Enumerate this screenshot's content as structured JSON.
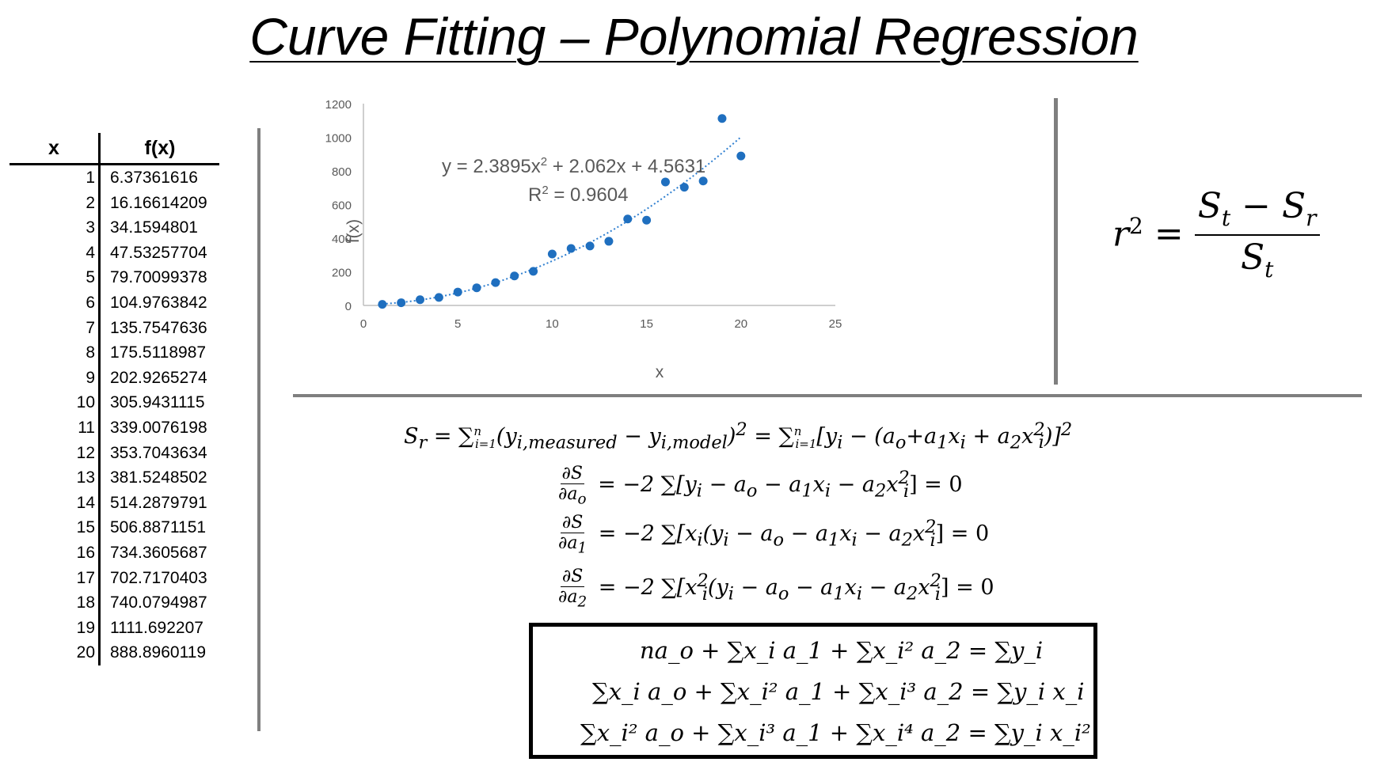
{
  "title": "Curve Fitting – Polynomial  Regression",
  "table": {
    "header_x": "x",
    "header_fx": "f(x)",
    "rows": [
      {
        "x": "1",
        "fx": "6.37361616"
      },
      {
        "x": "2",
        "fx": "16.16614209"
      },
      {
        "x": "3",
        "fx": "34.1594801"
      },
      {
        "x": "4",
        "fx": "47.53257704"
      },
      {
        "x": "5",
        "fx": "79.70099378"
      },
      {
        "x": "6",
        "fx": "104.9763842"
      },
      {
        "x": "7",
        "fx": "135.7547636"
      },
      {
        "x": "8",
        "fx": "175.5118987"
      },
      {
        "x": "9",
        "fx": "202.9265274"
      },
      {
        "x": "10",
        "fx": "305.9431115"
      },
      {
        "x": "11",
        "fx": "339.0076198"
      },
      {
        "x": "12",
        "fx": "353.7043634"
      },
      {
        "x": "13",
        "fx": "381.5248502"
      },
      {
        "x": "14",
        "fx": "514.2879791"
      },
      {
        "x": "15",
        "fx": "506.8871151"
      },
      {
        "x": "16",
        "fx": "734.3605687"
      },
      {
        "x": "17",
        "fx": "702.7170403"
      },
      {
        "x": "18",
        "fx": "740.0794987"
      },
      {
        "x": "19",
        "fx": "1111.692207"
      },
      {
        "x": "20",
        "fx": "888.8960119"
      }
    ]
  },
  "chart_data": {
    "type": "scatter",
    "title": "",
    "xlabel": "x",
    "ylabel": "f(x)",
    "xlim": [
      0,
      25
    ],
    "ylim": [
      0,
      1200
    ],
    "xticks": [
      "0",
      "5",
      "10",
      "15",
      "20",
      "25"
    ],
    "yticks": [
      "0",
      "200",
      "400",
      "600",
      "800",
      "1000",
      "1200"
    ],
    "grid": false,
    "point_color": "#1f6fbf",
    "trendline_color": "#2f7fd0",
    "x": [
      1,
      2,
      3,
      4,
      5,
      6,
      7,
      8,
      9,
      10,
      11,
      12,
      13,
      14,
      15,
      16,
      17,
      18,
      19,
      20
    ],
    "y": [
      6.37361616,
      16.16614209,
      34.1594801,
      47.53257704,
      79.70099378,
      104.9763842,
      135.7547636,
      175.5118987,
      202.9265274,
      305.9431115,
      339.0076198,
      353.7043634,
      381.5248502,
      514.2879791,
      506.8871151,
      734.3605687,
      702.7170403,
      740.0794987,
      1111.692207,
      888.8960119
    ],
    "trendline": {
      "type": "polynomial",
      "order": 2,
      "coefficients": [
        2.3895,
        2.062,
        4.5631
      ]
    },
    "annotations": {
      "equation_prefix": "y = 2.3895x",
      "equation_exp": "2",
      "equation_suffix": " + 2.062x + 4.5631",
      "r2_prefix": "R",
      "r2_exp": "2",
      "r2_suffix": " = 0.9604"
    }
  },
  "r_squared_formula": {
    "lhs_base": "r",
    "lhs_exp": "2",
    "equals": "=",
    "num_1": "S",
    "num_1_sub": "t",
    "minus": " − ",
    "num_2": "S",
    "num_2_sub": "r",
    "den": "S",
    "den_sub": "t"
  },
  "equations": {
    "sr": {
      "part1": "S",
      "part1_sub": "r",
      "part2": " = ∑",
      "part3": "(y",
      "part3_sub": "i,measured",
      "part4": " − y",
      "part4_sub": "i,model",
      "part5": ")",
      "part5_sup": "2",
      "part6": " = ∑",
      "part7": "[y",
      "part7_sub": "i",
      "part8": " − (a",
      "part8_sub": "o",
      "part9": "+a",
      "part9_sub": "1",
      "part10": "x",
      "part10_sub": "i",
      "part11": " + a",
      "part11_sub": "2",
      "part12": "x",
      "part12_sub": "i",
      "part12_sup": "2",
      "part13": ")]",
      "part13_sup": "2"
    },
    "d0": {
      "num": "∂S",
      "den": "∂a",
      "den_sub": "o",
      "body": " = −2 ∑[y",
      "body_sub": "i",
      "t1": " − a",
      "t1_sub": "o",
      "t2": " − a",
      "t2_sub": "1",
      "t3": "x",
      "t3_sub": "i",
      "t4": " − a",
      "t4_sub": "2",
      "t5": "x",
      "t5_sub": "i",
      "t5_sup": "2",
      "end": "] = 0"
    },
    "d1": {
      "num": "∂S",
      "den": "∂a",
      "den_sub": "1",
      "body": " = −2 ∑[x",
      "body_sub": "i",
      "t0": "(y",
      "t0_sub": "i",
      "t1": " − a",
      "t1_sub": "o",
      "t2": " − a",
      "t2_sub": "1",
      "t3": "x",
      "t3_sub": "i",
      "t4": " − a",
      "t4_sub": "2",
      "t5": "x",
      "t5_sub": "i",
      "t5_sup": "2",
      "end": "] = 0"
    },
    "d2": {
      "num": "∂S",
      "den": "∂a",
      "den_sub": "2",
      "body": " = −2 ∑[x",
      "body_sub": "i",
      "body_sup": "2",
      "t0": "(y",
      "t0_sub": "i",
      "t1": " − a",
      "t1_sub": "o",
      "t2": " − a",
      "t2_sub": "1",
      "t3": "x",
      "t3_sub": "i",
      "t4": " − a",
      "t4_sub": "2",
      "t5": "x",
      "t5_sub": "i",
      "t5_sup": "2",
      "end": "] = 0"
    },
    "sum_sub": "i=1",
    "sum_sup": "n"
  },
  "normal_equations": {
    "row1": "na_o + ∑x_i a_1 + ∑x_i² a_2  = ∑y_i",
    "row2": "∑x_i a_o + ∑x_i² a_1 + ∑x_i³ a_2 = ∑y_i x_i",
    "row3": "∑x_i² a_o + ∑x_i³ a_1 + ∑x_i⁴ a_2 = ∑y_i x_i²"
  }
}
